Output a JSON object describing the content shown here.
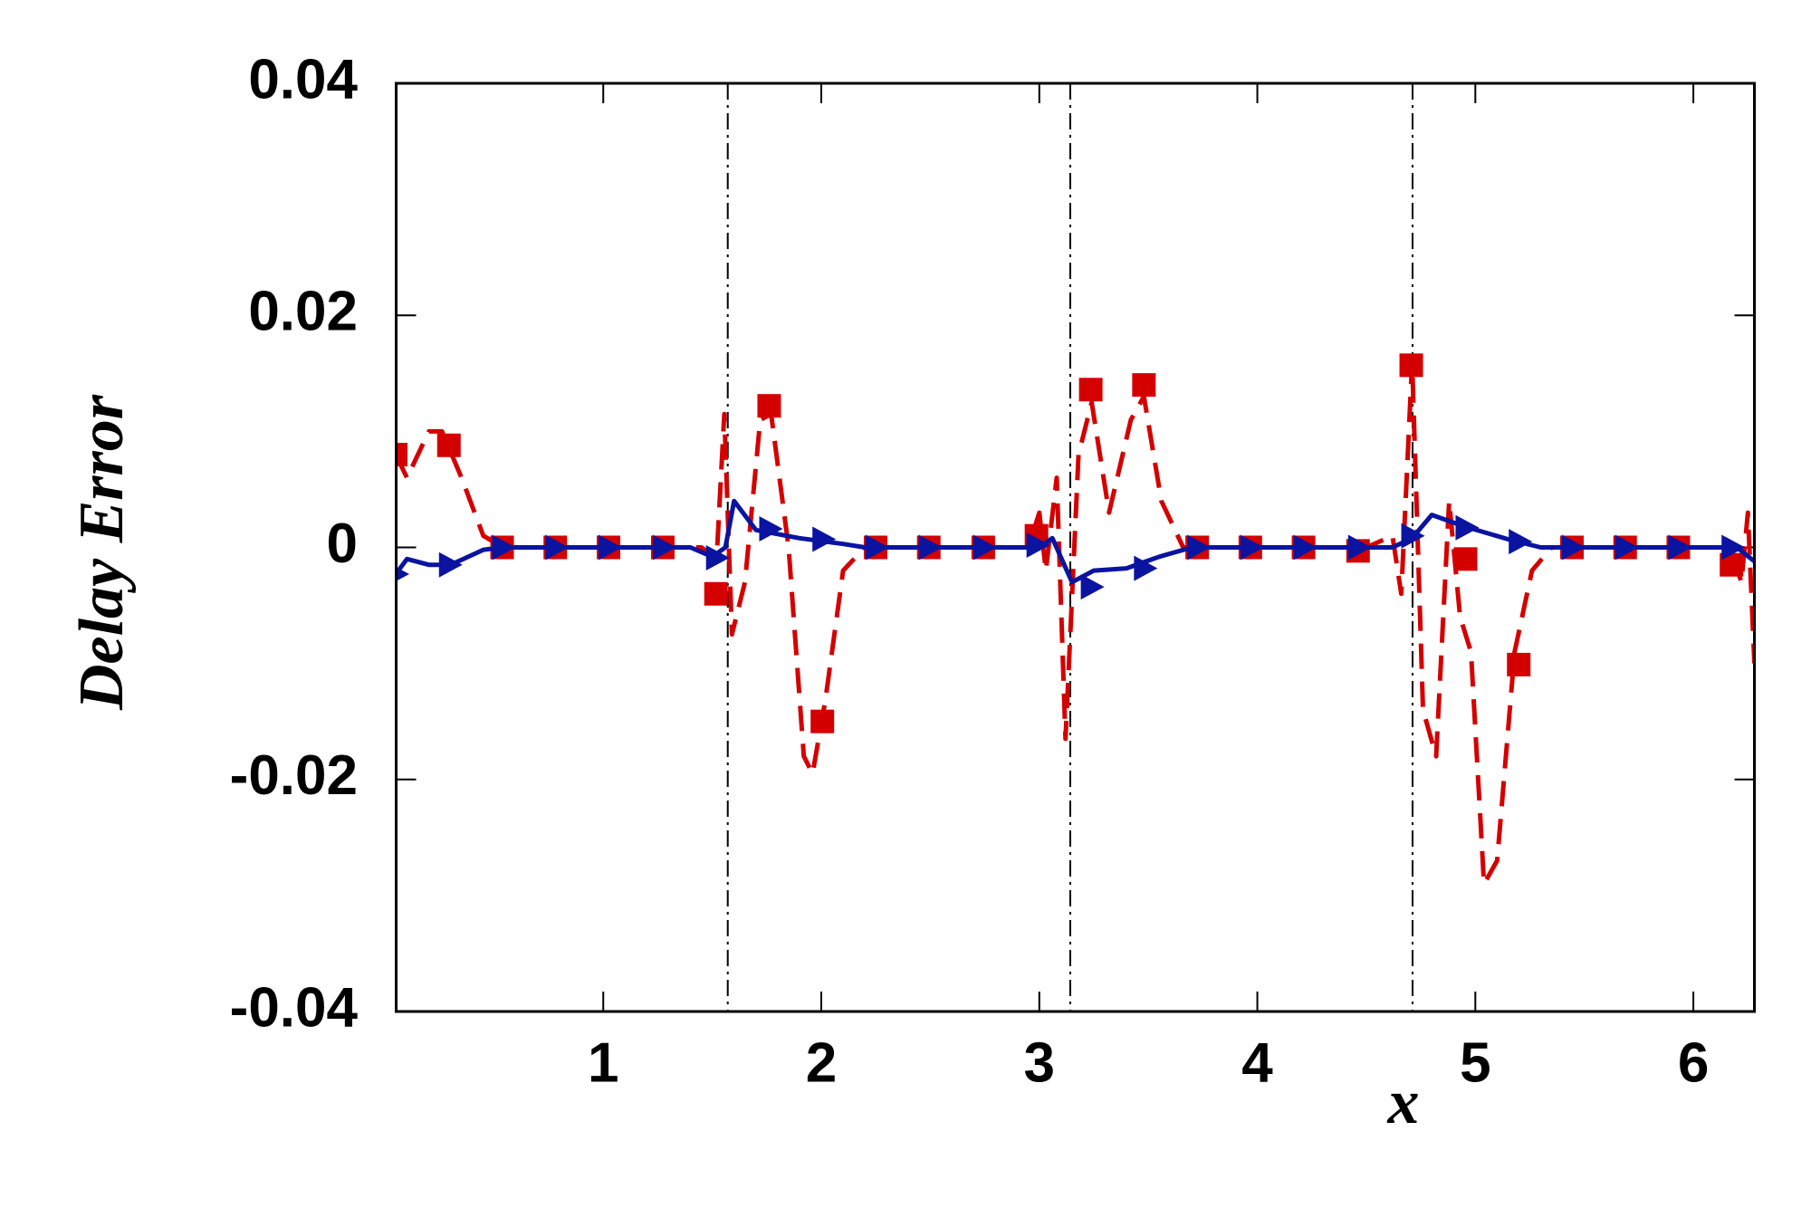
{
  "chart_data": {
    "type": "line",
    "xlabel": "x",
    "ylabel": "Delay Error",
    "xlim": [
      0.05,
      6.28
    ],
    "ylim": [
      -0.04,
      0.04
    ],
    "xticks": [
      1,
      2,
      3,
      4,
      5,
      6
    ],
    "yticks": [
      -0.04,
      -0.02,
      0,
      0.02,
      0.04
    ],
    "vlines": [
      1.571,
      3.142,
      4.712
    ],
    "series": [
      {
        "color": "#d40000",
        "linestyle": "dashed",
        "marker": "square",
        "x": [
          0.048,
          0.1,
          0.2,
          0.26,
          0.35,
          0.45,
          0.54,
          1.45,
          1.52,
          1.555,
          1.59,
          1.65,
          1.72,
          1.77,
          1.85,
          1.92,
          1.96,
          2.02,
          2.1,
          2.2,
          2.95,
          3.0,
          3.03,
          3.08,
          3.12,
          3.18,
          3.24,
          3.32,
          3.42,
          3.48,
          3.56,
          3.66,
          4.5,
          4.62,
          4.66,
          4.71,
          4.76,
          4.82,
          4.88,
          4.93,
          4.98,
          5.04,
          5.1,
          5.18,
          5.26,
          5.35,
          6.17,
          6.22,
          6.25,
          6.28
        ],
        "values": [
          0.008,
          0.006,
          0.01,
          0.01,
          0.006,
          0.001,
          0,
          0,
          -0.001,
          0.0115,
          -0.0075,
          -0.003,
          0.011,
          0.0115,
          0,
          -0.018,
          -0.0195,
          -0.013,
          -0.002,
          0,
          0,
          0.003,
          -0.002,
          0.006,
          -0.0165,
          0.008,
          0.0125,
          0.003,
          0.011,
          0.013,
          0.004,
          0,
          0,
          0.001,
          -0.004,
          0.016,
          -0.014,
          -0.018,
          0.004,
          -0.006,
          -0.009,
          -0.029,
          -0.027,
          -0.009,
          -0.002,
          0,
          0,
          -0.003,
          0.003,
          -0.01
        ],
        "markers": {
          "x": [
            0.048,
            0.292,
            0.536,
            0.78,
            1.024,
            1.273,
            1.517,
            1.761,
            2.005,
            2.249,
            2.493,
            2.743,
            2.987,
            3.236,
            3.48,
            3.724,
            3.968,
            4.212,
            4.462,
            4.706,
            4.955,
            5.199,
            5.443,
            5.687,
            5.931,
            6.175
          ],
          "values": [
            0.008,
            0.0088,
            0,
            0,
            0,
            0,
            -0.004,
            0.0122,
            -0.015,
            0,
            0,
            0,
            0.001,
            0.0136,
            0.014,
            0,
            0,
            0,
            -0.0003,
            0.0157,
            -0.001,
            -0.0101,
            0,
            0,
            0,
            -0.0015
          ]
        }
      },
      {
        "color": "#0a14a0",
        "linestyle": "solid",
        "marker": "triangle-right",
        "x": [
          0.048,
          0.1,
          0.2,
          0.3,
          0.45,
          0.54,
          1.4,
          1.5,
          1.56,
          1.6,
          1.7,
          1.9,
          2.1,
          2.2,
          3.0,
          3.06,
          3.15,
          3.25,
          3.4,
          3.55,
          3.7,
          4.62,
          4.71,
          4.8,
          4.95,
          5.15,
          5.3,
          6.2,
          6.28
        ],
        "values": [
          -0.0023,
          -0.001,
          -0.0015,
          -0.0015,
          -0.0002,
          0,
          0,
          -0.0008,
          0,
          0.004,
          0.0015,
          0.0008,
          0.0003,
          0,
          0,
          0.0008,
          -0.003,
          -0.002,
          -0.0018,
          -0.0008,
          0,
          0,
          0.0008,
          0.0028,
          0.0018,
          0.0007,
          0,
          0,
          -0.0012
        ],
        "markers": {
          "x": [
            0.048,
            0.292,
            0.536,
            0.78,
            1.024,
            1.273,
            1.517,
            1.761,
            2.005,
            2.249,
            2.493,
            2.743,
            2.987,
            3.236,
            3.48,
            3.724,
            3.968,
            4.212,
            4.462,
            4.706,
            4.955,
            5.199,
            5.443,
            5.687,
            5.931,
            6.175
          ],
          "values": [
            -0.0023,
            -0.0015,
            0,
            0,
            0,
            0,
            -0.0009,
            0.0016,
            0.0007,
            0,
            0,
            0,
            0.0002,
            -0.0034,
            -0.0018,
            0,
            0,
            0,
            0,
            0.001,
            0.0017,
            0.0005,
            0,
            0,
            0,
            0
          ]
        }
      }
    ]
  }
}
